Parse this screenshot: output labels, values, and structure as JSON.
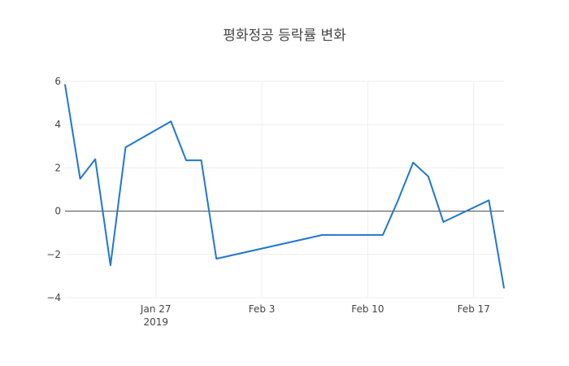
{
  "chart_data": {
    "type": "line",
    "title": "평화정공 등락률 변화",
    "xlabel": "",
    "ylabel": "",
    "x_tick_labels": [
      "Jan 27",
      "Feb 3",
      "Feb 10",
      "Feb 17"
    ],
    "x_year_label": "2019",
    "y_tick_labels": [
      "6",
      "4",
      "2",
      "0",
      "−2",
      "−4"
    ],
    "ylim": [
      -4,
      6
    ],
    "xlim": [
      "2019-01-21",
      "2019-02-19"
    ],
    "grid": true,
    "zero_line": true,
    "series": [
      {
        "color": "#1f77d4",
        "x": [
          "2019-01-21",
          "2019-01-22",
          "2019-01-23",
          "2019-01-24",
          "2019-01-25",
          "2019-01-28",
          "2019-01-29",
          "2019-01-30",
          "2019-01-31",
          "2019-02-07",
          "2019-02-08",
          "2019-02-11",
          "2019-02-12",
          "2019-02-13",
          "2019-02-14",
          "2019-02-15",
          "2019-02-18",
          "2019-02-19"
        ],
        "values": [
          5.85,
          1.5,
          2.4,
          -2.5,
          2.95,
          4.15,
          2.35,
          2.35,
          -2.2,
          -1.1,
          -1.1,
          -1.1,
          0.5,
          2.25,
          1.6,
          -0.5,
          0.5,
          -3.55
        ]
      }
    ]
  }
}
